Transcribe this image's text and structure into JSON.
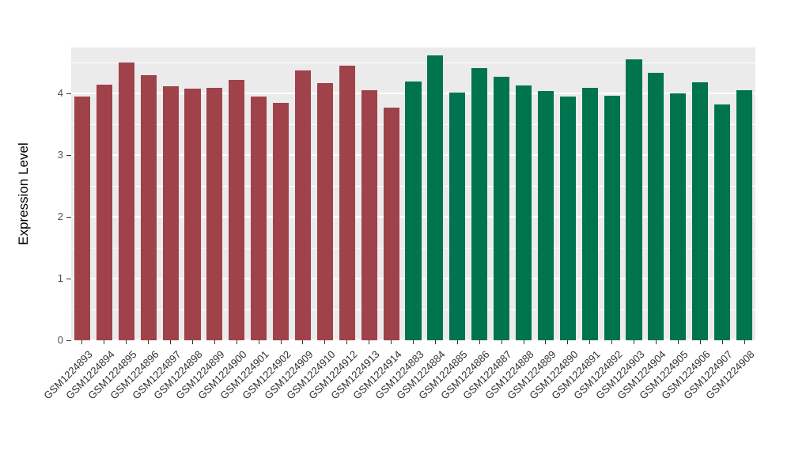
{
  "chart_data": {
    "type": "bar",
    "title": "",
    "xlabel": "",
    "ylabel": "Expression Level",
    "ylim": [
      0,
      4.75
    ],
    "yticks": [
      0,
      1,
      2,
      3,
      4
    ],
    "grid": "on",
    "legend_position": "none",
    "panel_bg": "#EBEBEB",
    "grid_color": "#FFFFFF",
    "categories": [
      "GSM1224893",
      "GSM1224894",
      "GSM1224895",
      "GSM1224896",
      "GSM1224897",
      "GSM1224898",
      "GSM1224899",
      "GSM1224900",
      "GSM1224901",
      "GSM1224902",
      "GSM1224909",
      "GSM1224910",
      "GSM1224912",
      "GSM1224913",
      "GSM1224914",
      "GSM1224883",
      "GSM1224884",
      "GSM1224885",
      "GSM1224886",
      "GSM1224887",
      "GSM1224888",
      "GSM1224889",
      "GSM1224890",
      "GSM1224891",
      "GSM1224892",
      "GSM1224903",
      "GSM1224904",
      "GSM1224905",
      "GSM1224906",
      "GSM1224907",
      "GSM1224908"
    ],
    "values": [
      3.95,
      4.15,
      4.5,
      4.3,
      4.12,
      4.08,
      4.09,
      4.23,
      3.95,
      3.85,
      4.38,
      4.17,
      4.46,
      4.06,
      3.77,
      4.2,
      4.62,
      4.02,
      4.42,
      4.27,
      4.13,
      4.04,
      3.95,
      4.09,
      3.97,
      4.56,
      4.34,
      4.0,
      4.18,
      3.82,
      4.06
    ],
    "groups": [
      "red",
      "red",
      "red",
      "red",
      "red",
      "red",
      "red",
      "red",
      "red",
      "red",
      "red",
      "red",
      "red",
      "red",
      "red",
      "green",
      "green",
      "green",
      "green",
      "green",
      "green",
      "green",
      "green",
      "green",
      "green",
      "green",
      "green",
      "green",
      "green",
      "green",
      "green"
    ],
    "group_colors": {
      "red": "#A0424A",
      "green": "#00744E"
    }
  }
}
